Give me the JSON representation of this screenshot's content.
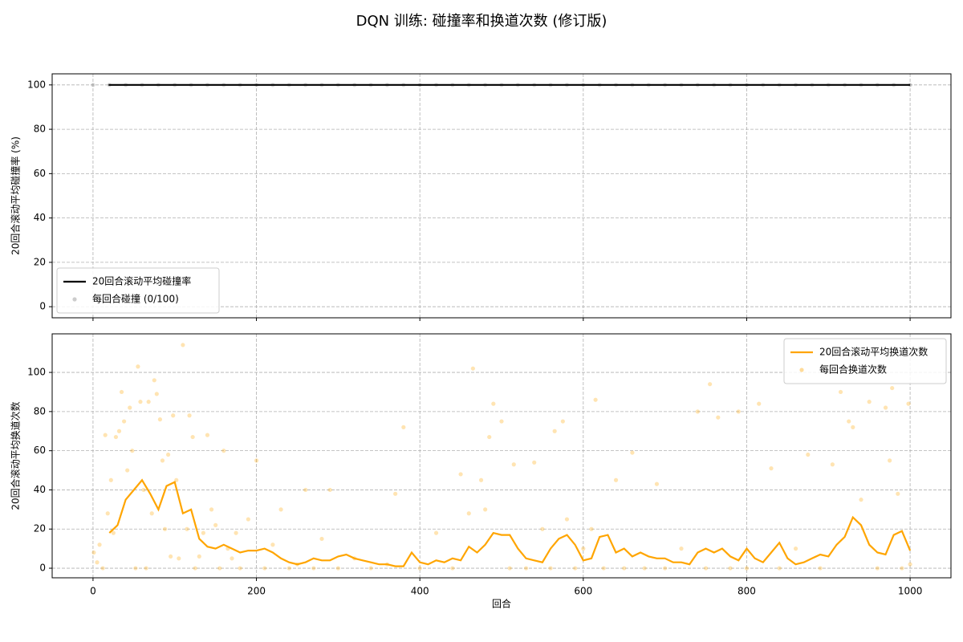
{
  "title": "DQN 训练: 碰撞率和换道次数 (修订版)",
  "chart_data": [
    {
      "type": "line",
      "ylabel": "20回合滚动平均碰撞率 (%)",
      "xlim": [
        -50,
        1050
      ],
      "ylim": [
        -5,
        105
      ],
      "xticks": [
        0,
        200,
        400,
        600,
        800,
        1000
      ],
      "yticks": [
        0,
        20,
        40,
        60,
        80,
        100
      ],
      "grid": true,
      "legend": "lower left",
      "series": [
        {
          "name": "20回合滚动平均碰撞率",
          "color": "#000000",
          "type": "line",
          "x": [
            19,
            1000
          ],
          "values": [
            100,
            100
          ]
        },
        {
          "name": "每回合碰撞 (0/100)",
          "color": "#808080",
          "type": "scatter",
          "x": [
            0,
            20,
            40,
            60,
            80,
            100,
            120,
            140,
            160,
            180,
            200,
            220,
            240,
            260,
            280,
            300,
            320,
            340,
            360,
            380,
            400,
            420,
            440,
            460,
            480,
            500,
            520,
            540,
            560,
            580,
            600,
            620,
            640,
            660,
            680,
            700,
            720,
            740,
            760,
            780,
            800,
            820,
            840,
            860,
            880,
            900,
            920,
            940,
            960,
            980,
            1000
          ],
          "values": [
            100,
            100,
            100,
            100,
            100,
            100,
            100,
            100,
            100,
            100,
            100,
            100,
            100,
            100,
            100,
            100,
            100,
            100,
            100,
            100,
            100,
            100,
            100,
            100,
            100,
            100,
            100,
            100,
            100,
            100,
            100,
            100,
            100,
            100,
            100,
            100,
            100,
            100,
            100,
            100,
            100,
            100,
            100,
            100,
            100,
            100,
            100,
            100,
            100,
            100,
            100
          ]
        }
      ]
    },
    {
      "type": "line",
      "ylabel": "20回合滚动平均换道次数",
      "xlabel": "回合",
      "xlim": [
        -50,
        1050
      ],
      "ylim": [
        -4.9,
        119.7
      ],
      "xticks": [
        0,
        200,
        400,
        600,
        800,
        1000
      ],
      "yticks": [
        0,
        20,
        40,
        60,
        80,
        100
      ],
      "grid": true,
      "legend": "upper right",
      "series": [
        {
          "name": "20回合滚动平均换道次数",
          "color": "#ffa500",
          "type": "line",
          "x": [
            20,
            30,
            40,
            50,
            60,
            70,
            80,
            90,
            100,
            110,
            120,
            130,
            140,
            150,
            160,
            170,
            180,
            190,
            200,
            210,
            220,
            230,
            240,
            250,
            260,
            270,
            280,
            290,
            300,
            310,
            320,
            330,
            340,
            350,
            360,
            370,
            380,
            390,
            400,
            410,
            420,
            430,
            440,
            450,
            460,
            470,
            480,
            490,
            500,
            510,
            520,
            530,
            540,
            550,
            560,
            570,
            580,
            590,
            600,
            610,
            620,
            630,
            640,
            650,
            660,
            670,
            680,
            690,
            700,
            710,
            720,
            730,
            740,
            750,
            760,
            770,
            780,
            790,
            800,
            810,
            820,
            830,
            840,
            850,
            860,
            870,
            880,
            890,
            900,
            910,
            920,
            930,
            940,
            950,
            960,
            970,
            980,
            990,
            1000
          ],
          "values": [
            18,
            22,
            35,
            40,
            45,
            38,
            30,
            42,
            44,
            28,
            30,
            15,
            11,
            10,
            12,
            10,
            8,
            9,
            9,
            10,
            8,
            5,
            3,
            2,
            3,
            5,
            4,
            4,
            6,
            7,
            5,
            4,
            3,
            2,
            2,
            1,
            1,
            8,
            3,
            2,
            4,
            3,
            5,
            4,
            11,
            8,
            12,
            18,
            17,
            17,
            10,
            5,
            4,
            3,
            10,
            15,
            17,
            12,
            4,
            5,
            16,
            17,
            8,
            10,
            6,
            8,
            6,
            5,
            5,
            3,
            3,
            2,
            8,
            10,
            8,
            10,
            6,
            4,
            10,
            5,
            3,
            8,
            13,
            5,
            2,
            3,
            5,
            7,
            6,
            12,
            16,
            26,
            22,
            12,
            8,
            7,
            17,
            19,
            9
          ]
        },
        {
          "name": "每回合换道次数",
          "color": "#ffa500",
          "type": "scatter",
          "x": [
            1,
            5,
            8,
            12,
            15,
            18,
            22,
            25,
            28,
            32,
            35,
            38,
            42,
            45,
            48,
            52,
            55,
            58,
            62,
            65,
            68,
            72,
            75,
            78,
            82,
            85,
            88,
            92,
            95,
            98,
            102,
            105,
            110,
            115,
            118,
            122,
            125,
            130,
            135,
            140,
            145,
            150,
            155,
            160,
            165,
            170,
            175,
            180,
            190,
            200,
            210,
            220,
            230,
            240,
            250,
            260,
            270,
            280,
            290,
            300,
            320,
            340,
            360,
            370,
            380,
            400,
            420,
            440,
            450,
            460,
            465,
            475,
            480,
            485,
            490,
            500,
            510,
            515,
            530,
            540,
            550,
            560,
            565,
            575,
            580,
            590,
            600,
            610,
            615,
            625,
            640,
            650,
            660,
            675,
            690,
            700,
            720,
            740,
            750,
            755,
            765,
            780,
            790,
            800,
            815,
            830,
            840,
            860,
            875,
            890,
            905,
            915,
            925,
            930,
            940,
            950,
            960,
            970,
            975,
            978,
            985,
            990,
            998,
            1000
          ],
          "values": [
            8,
            3,
            12,
            0,
            68,
            28,
            45,
            18,
            67,
            70,
            90,
            75,
            50,
            82,
            60,
            0,
            103,
            85,
            40,
            0,
            85,
            28,
            96,
            89,
            76,
            55,
            20,
            58,
            6,
            78,
            45,
            5,
            114,
            20,
            78,
            67,
            0,
            6,
            18,
            68,
            30,
            22,
            0,
            60,
            10,
            5,
            18,
            0,
            25,
            55,
            0,
            12,
            30,
            0,
            2,
            40,
            0,
            15,
            40,
            0,
            5,
            0,
            2,
            38,
            72,
            0,
            18,
            0,
            48,
            28,
            102,
            45,
            30,
            67,
            84,
            75,
            0,
            53,
            0,
            54,
            20,
            0,
            70,
            75,
            25,
            0,
            10,
            20,
            86,
            0,
            45,
            0,
            59,
            0,
            43,
            0,
            10,
            80,
            0,
            94,
            77,
            0,
            80,
            0,
            84,
            51,
            0,
            10,
            58,
            0,
            53,
            90,
            75,
            72,
            35,
            85,
            0,
            82,
            55,
            92,
            38,
            0,
            84,
            2
          ]
        }
      ]
    }
  ]
}
